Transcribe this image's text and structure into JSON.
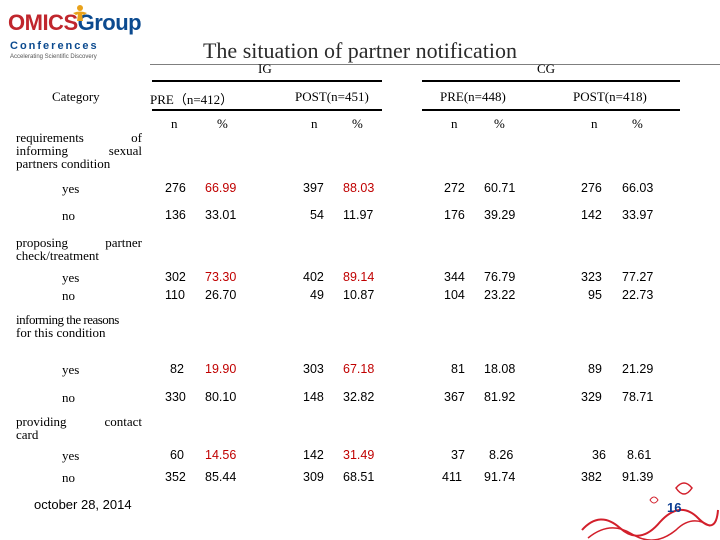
{
  "logo": {
    "brand_main": "OMICS",
    "brand_group": "Group",
    "brand_sub": "Conferences",
    "tagline": "Accelerating Scientific Discovery"
  },
  "title": "The situation of partner notification",
  "groups": {
    "ig": "IG",
    "cg": "CG"
  },
  "header": {
    "category": "Category",
    "ig_pre": "PRE（n=412）",
    "ig_post": "POST(n=451)",
    "cg_pre": "PRE(n=448)",
    "cg_post": "POST(n=418)",
    "n": "n",
    "pct": "%"
  },
  "sections": [
    {
      "title_line1": "requirements of",
      "title_line2": "informing sexual",
      "title_line3": "partners condition",
      "rows": [
        {
          "label": "yes",
          "values": [
            "276",
            "66.99",
            "397",
            "88.03",
            "272",
            "60.71",
            "276",
            "66.03"
          ]
        },
        {
          "label": "no",
          "values": [
            "136",
            "33.01",
            "54",
            "11.97",
            "176",
            "39.29",
            "142",
            "33.97"
          ]
        }
      ]
    },
    {
      "title_line1": "proposing partner",
      "title_line2": "check/treatment",
      "rows": [
        {
          "label": "yes",
          "values": [
            "302",
            "73.30",
            "402",
            "89.14",
            "344",
            "76.79",
            "323",
            "77.27"
          ]
        },
        {
          "label": "no",
          "values": [
            "110",
            "26.70",
            "49",
            "10.87",
            "104",
            "23.22",
            "95",
            "22.73"
          ]
        }
      ]
    },
    {
      "title_line1": "informing the reasons",
      "title_line2": "for this condition",
      "rows": [
        {
          "label": "yes",
          "values": [
            "82",
            "19.90",
            "303",
            "67.18",
            "81",
            "18.08",
            "89",
            "21.29"
          ]
        },
        {
          "label": "no",
          "values": [
            "330",
            "80.10",
            "148",
            "32.82",
            "367",
            "81.92",
            "329",
            "78.71"
          ]
        }
      ]
    },
    {
      "title_line1": "providing contact",
      "title_line2": "card",
      "rows": [
        {
          "label": "yes",
          "values": [
            "60",
            "14.56",
            "142",
            "31.49",
            "37",
            "8.26",
            "36",
            "8.61"
          ]
        },
        {
          "label": "no",
          "values": [
            "352",
            "85.44",
            "309",
            "68.51",
            "411",
            "91.74",
            "382",
            "91.39"
          ]
        }
      ]
    }
  ],
  "footer": {
    "date": "october 28, 2014",
    "page": "16"
  }
}
